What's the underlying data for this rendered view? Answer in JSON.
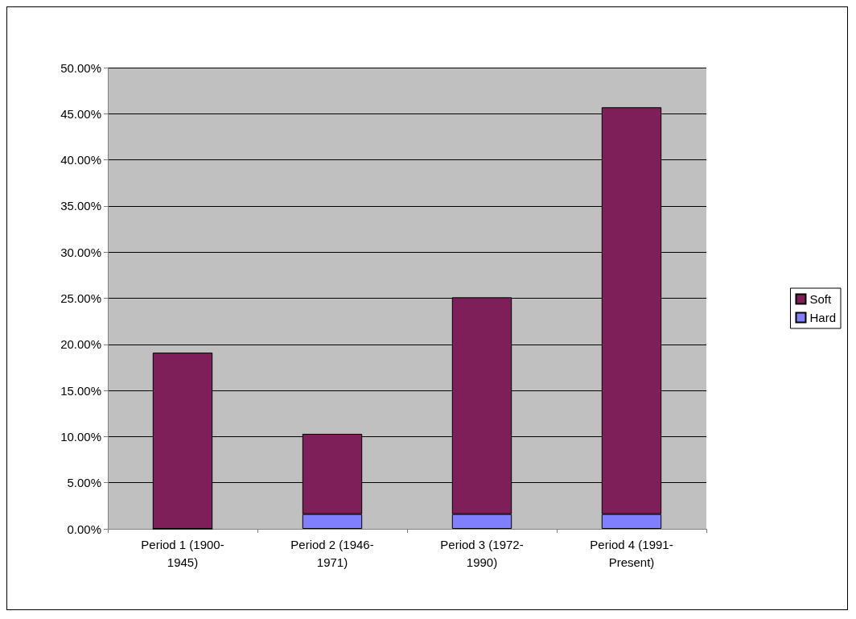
{
  "chart_data": {
    "type": "bar",
    "stacked": true,
    "categories": [
      "Period 1 (1900-1945)",
      "Period 2 (1946-1971)",
      "Period 3 (1972-1990)",
      "Period 4 (1991-Present)"
    ],
    "series": [
      {
        "name": "Hard",
        "color": "#8080ff",
        "values": [
          0,
          1.6,
          1.6,
          1.6
        ]
      },
      {
        "name": "Soft",
        "color": "#7f1f5a",
        "values": [
          19.1,
          8.7,
          23.5,
          44.1
        ]
      }
    ],
    "ylim": [
      0,
      50
    ],
    "yticks": [
      {
        "value": 0,
        "label": "0.00%"
      },
      {
        "value": 5,
        "label": "5.00%"
      },
      {
        "value": 10,
        "label": "10.00%"
      },
      {
        "value": 15,
        "label": "15.00%"
      },
      {
        "value": 20,
        "label": "20.00%"
      },
      {
        "value": 25,
        "label": "25.00%"
      },
      {
        "value": 30,
        "label": "30.00%"
      },
      {
        "value": 35,
        "label": "35.00%"
      },
      {
        "value": 40,
        "label": "40.00%"
      },
      {
        "value": 45,
        "label": "45.00%"
      },
      {
        "value": 50,
        "label": "50.00%"
      }
    ],
    "grid": true,
    "legend": "right"
  }
}
